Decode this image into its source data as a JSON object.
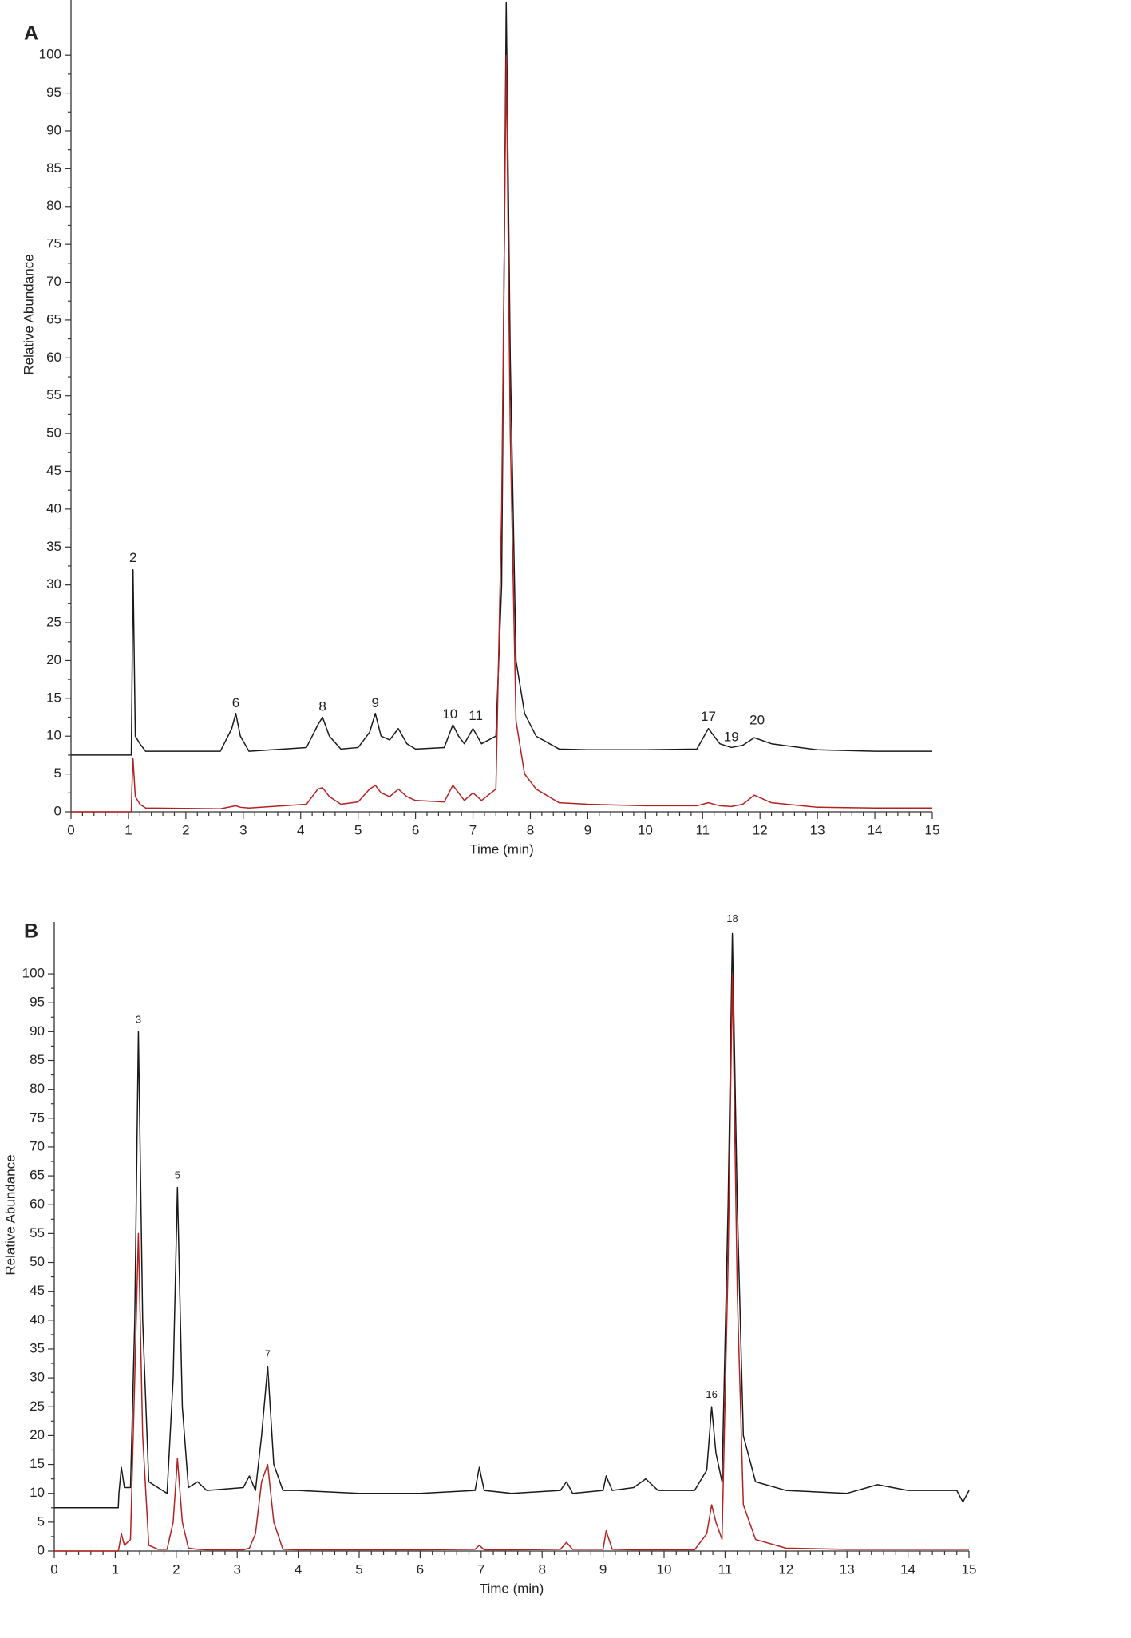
{
  "chart_data": [
    {
      "type": "line",
      "panel": "A",
      "xlabel": "Time (min)",
      "ylabel": "Relative Abundance",
      "xlim": [
        0,
        15
      ],
      "xticks": [
        0,
        1,
        2,
        3,
        4,
        5,
        6,
        7,
        8,
        9,
        10,
        11,
        12,
        13,
        14,
        15
      ],
      "ylim": [
        0,
        107.3
      ],
      "yticks": [
        0,
        5,
        10,
        15,
        20,
        25,
        30,
        35,
        40,
        45,
        50,
        55,
        60,
        65,
        70,
        75,
        80,
        85,
        90,
        95,
        100
      ],
      "x": [
        0,
        1.05,
        1.06,
        1.08,
        1.12,
        1.2,
        1.3,
        2.6,
        2.8,
        2.87,
        2.95,
        3.1,
        4.1,
        4.3,
        4.38,
        4.5,
        4.7,
        5.0,
        5.2,
        5.3,
        5.4,
        5.55,
        5.7,
        5.85,
        6.0,
        6.5,
        6.65,
        6.75,
        6.85,
        7.0,
        7.15,
        7.4,
        7.5,
        7.58,
        7.65,
        7.75,
        7.9,
        8.1,
        8.5,
        9,
        10,
        10.9,
        11.1,
        11.3,
        11.5,
        11.7,
        11.9,
        12.2,
        13,
        14,
        15
      ],
      "series": [
        {
          "color": "#1a1a1a",
          "values": [
            7.5,
            7.5,
            15,
            32,
            10,
            9,
            8,
            8,
            11,
            13,
            10,
            8,
            8.5,
            11.5,
            12.5,
            10,
            8.3,
            8.5,
            10.5,
            13,
            10,
            9.5,
            11,
            9,
            8.3,
            8.5,
            11.5,
            10,
            9,
            11,
            9,
            10,
            30,
            107,
            60,
            20,
            13,
            10,
            8.3,
            8.2,
            8.2,
            8.3,
            11,
            9,
            8.5,
            8.8,
            9.8,
            9,
            8.2,
            8,
            8
          ]
        },
        {
          "color": "#b22222",
          "values": [
            0,
            0,
            3,
            7,
            2,
            1,
            0.5,
            0.4,
            0.7,
            0.8,
            0.6,
            0.5,
            1,
            3,
            3.2,
            2,
            1,
            1.3,
            3,
            3.5,
            2.5,
            2,
            3,
            2,
            1.5,
            1.3,
            3.5,
            2.5,
            1.5,
            2.5,
            1.5,
            3,
            40,
            100,
            50,
            12,
            5,
            3,
            1.2,
            1,
            0.8,
            0.8,
            1.2,
            0.8,
            0.7,
            1,
            2.2,
            1.2,
            0.6,
            0.5,
            0.5
          ]
        }
      ],
      "annotations": [
        {
          "text": "2",
          "x": 1.08,
          "y": 33.5
        },
        {
          "text": "6",
          "x": 2.87,
          "y": 14.3
        },
        {
          "text": "8",
          "x": 4.38,
          "y": 13.8
        },
        {
          "text": "9",
          "x": 5.3,
          "y": 14.3
        },
        {
          "text": "10",
          "x": 6.6,
          "y": 12.8
        },
        {
          "text": "11",
          "x": 7.05,
          "y": 12.6
        },
        {
          "text": "17",
          "x": 11.1,
          "y": 12.5
        },
        {
          "text": "19",
          "x": 11.5,
          "y": 9.8
        },
        {
          "text": "20",
          "x": 11.95,
          "y": 12
        }
      ]
    },
    {
      "type": "line",
      "panel": "B",
      "xlabel": "Time (min)",
      "ylabel": "Relative Abundance",
      "xlim": [
        0,
        15
      ],
      "xticks": [
        0,
        1,
        2,
        3,
        4,
        5,
        6,
        7,
        8,
        9,
        10,
        11,
        12,
        13,
        14,
        15
      ],
      "ylim": [
        0,
        109
      ],
      "yticks": [
        0,
        5,
        10,
        15,
        20,
        25,
        30,
        35,
        40,
        45,
        50,
        55,
        60,
        65,
        70,
        75,
        80,
        85,
        90,
        95,
        100
      ],
      "x": [
        0,
        1.05,
        1.06,
        1.1,
        1.15,
        1.25,
        1.32,
        1.38,
        1.45,
        1.55,
        1.7,
        1.85,
        1.95,
        2.02,
        2.1,
        2.2,
        2.35,
        2.5,
        3.1,
        3.2,
        3.3,
        3.4,
        3.5,
        3.6,
        3.75,
        4,
        5,
        6,
        6.9,
        6.97,
        7.05,
        7.5,
        8.3,
        8.4,
        8.5,
        9.0,
        9.05,
        9.15,
        9.5,
        9.7,
        9.9,
        10.5,
        10.7,
        10.78,
        10.85,
        10.95,
        11.05,
        11.12,
        11.2,
        11.3,
        11.5,
        12,
        13,
        13.5,
        14,
        14.8,
        14.9,
        15
      ],
      "series": [
        {
          "color": "#1a1a1a",
          "values": [
            7.5,
            7.5,
            10,
            14.5,
            11,
            11,
            40,
            90,
            40,
            12,
            11,
            10,
            30,
            63,
            25,
            11,
            12,
            10.5,
            11,
            13,
            10.5,
            20,
            32,
            15,
            10.5,
            10.5,
            10,
            10,
            10.5,
            14.5,
            10.5,
            10,
            10.5,
            12,
            10,
            10.5,
            13,
            10.5,
            11,
            12.5,
            10.5,
            10.5,
            14,
            25,
            17,
            12,
            60,
            107,
            60,
            20,
            12,
            10.5,
            10,
            11.5,
            10.5,
            10.5,
            8.5,
            10.5
          ]
        },
        {
          "color": "#b22222",
          "values": [
            0,
            0,
            0.5,
            3,
            1,
            2,
            30,
            55,
            20,
            1,
            0.3,
            0.3,
            5,
            16,
            5,
            0.5,
            0.3,
            0.2,
            0.2,
            0.5,
            3,
            12,
            15,
            5,
            0.3,
            0.2,
            0.2,
            0.2,
            0.3,
            1,
            0.2,
            0.2,
            0.3,
            1.5,
            0.3,
            0.3,
            3.5,
            0.3,
            0.2,
            0.2,
            0.2,
            0.2,
            3,
            8,
            5,
            2,
            50,
            100,
            45,
            8,
            2,
            0.5,
            0.3,
            0.3,
            0.3,
            0.3,
            0.3,
            0.3
          ]
        }
      ],
      "annotations": [
        {
          "text": "3",
          "x": 1.38,
          "y": 92
        },
        {
          "text": "5",
          "x": 2.02,
          "y": 65
        },
        {
          "text": "7",
          "x": 3.5,
          "y": 34
        },
        {
          "text": "16",
          "x": 10.78,
          "y": 27
        },
        {
          "text": "18",
          "x": 11.12,
          "y": 109.5
        }
      ]
    }
  ]
}
